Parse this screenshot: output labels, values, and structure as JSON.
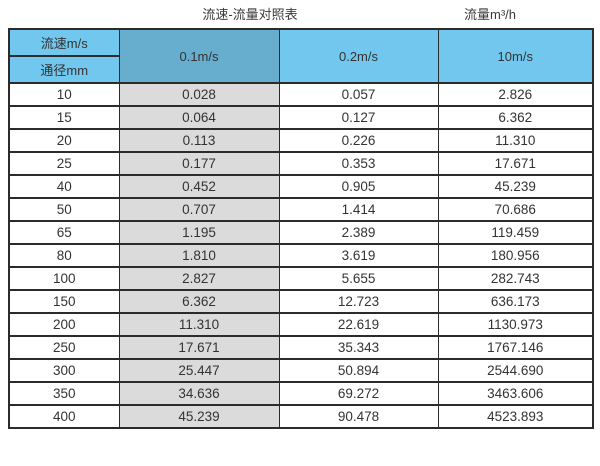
{
  "page": {
    "title_left": "流速-流量对照表",
    "title_right": "流量m³/h"
  },
  "table": {
    "corner": {
      "top": "流速m/s",
      "bottom": "通径mm"
    },
    "columns": [
      "0.1m/s",
      "0.2m/s",
      "10m/s"
    ],
    "rows": [
      [
        "10",
        "0.028",
        "0.057",
        "2.826"
      ],
      [
        "15",
        "0.064",
        "0.127",
        "6.362"
      ],
      [
        "20",
        "0.113",
        "0.226",
        "11.310"
      ],
      [
        "25",
        "0.177",
        "0.353",
        "17.671"
      ],
      [
        "40",
        "0.452",
        "0.905",
        "45.239"
      ],
      [
        "50",
        "0.707",
        "1.414",
        "70.686"
      ],
      [
        "65",
        "1.195",
        "2.389",
        "119.459"
      ],
      [
        "80",
        "1.810",
        "3.619",
        "180.956"
      ],
      [
        "100",
        "2.827",
        "5.655",
        "282.743"
      ],
      [
        "150",
        "6.362",
        "12.723",
        "636.173"
      ],
      [
        "200",
        "11.310",
        "22.619",
        "1130.973"
      ],
      [
        "250",
        "17.671",
        "35.343",
        "1767.146"
      ],
      [
        "300",
        "25.447",
        "50.894",
        "2544.690"
      ],
      [
        "350",
        "34.636",
        "69.272",
        "3463.606"
      ],
      [
        "400",
        "45.239",
        "90.478",
        "4523.893"
      ]
    ]
  },
  "colors": {
    "header_blue": "#72c7ee",
    "header_blue_dark": "#66adce",
    "cell_gray": "#dbdbdb",
    "border": "#2b2b2b"
  },
  "chart_data": {
    "type": "table",
    "title": "流速-流量对照表",
    "flow_unit_label": "流量m³/h",
    "column_header": "流速m/s",
    "row_header": "通径mm",
    "columns": [
      "0.1m/s",
      "0.2m/s",
      "10m/s"
    ],
    "diameters_mm": [
      10,
      15,
      20,
      25,
      40,
      50,
      65,
      80,
      100,
      150,
      200,
      250,
      300,
      350,
      400
    ],
    "series": [
      {
        "name": "0.1m/s",
        "values": [
          0.028,
          0.064,
          0.113,
          0.177,
          0.452,
          0.707,
          1.195,
          1.81,
          2.827,
          6.362,
          11.31,
          17.671,
          25.447,
          34.636,
          45.239
        ]
      },
      {
        "name": "0.2m/s",
        "values": [
          0.057,
          0.127,
          0.226,
          0.353,
          0.905,
          1.414,
          2.389,
          3.619,
          5.655,
          12.723,
          22.619,
          35.343,
          50.894,
          69.272,
          90.478
        ]
      },
      {
        "name": "10m/s",
        "values": [
          2.826,
          6.362,
          11.31,
          17.671,
          45.239,
          70.686,
          119.459,
          180.956,
          282.743,
          636.173,
          1130.973,
          1767.146,
          2544.69,
          3463.606,
          4523.893
        ]
      }
    ]
  }
}
